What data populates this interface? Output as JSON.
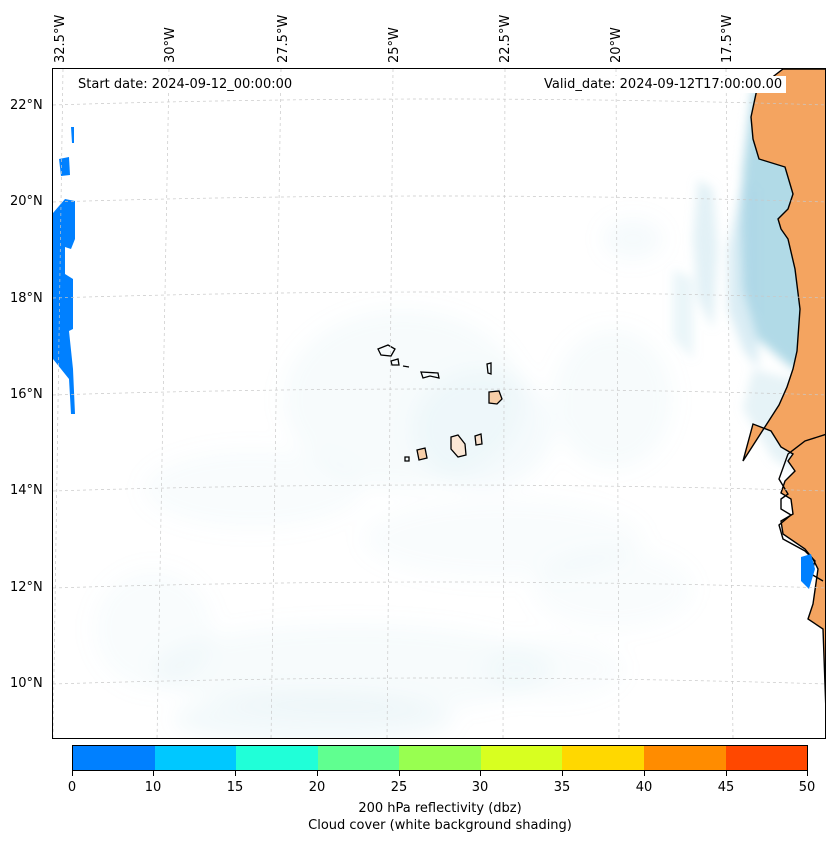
{
  "map": {
    "start_date_label": "Start date: 2024-09-12_00:00:00",
    "valid_date_label": "Valid_date: 2024-09-12T17:00:00.00",
    "longitude_labels": [
      "32.5°W",
      "30°W",
      "27.5°W",
      "25°W",
      "22.5°W",
      "20°W",
      "17.5°W"
    ],
    "latitude_labels": [
      "22°N",
      "20°N",
      "18°N",
      "16°N",
      "14°N",
      "12°N",
      "10°N"
    ],
    "colors": {
      "land": "#f4a460",
      "cloud": "#add8e6",
      "coast": "#000000",
      "grid": "#c8c8c8"
    }
  },
  "colorbar": {
    "colors": [
      "#0080ff",
      "#00c8ff",
      "#20ffd8",
      "#60ff90",
      "#98ff50",
      "#d8ff20",
      "#ffd800",
      "#ff8c00",
      "#ff4800"
    ],
    "tick_labels": [
      "0",
      "10",
      "15",
      "20",
      "25",
      "30",
      "35",
      "40",
      "45",
      "50"
    ],
    "label_line1": "200 hPa reflectivity (dbz)",
    "label_line2": "Cloud cover (white background shading)"
  }
}
